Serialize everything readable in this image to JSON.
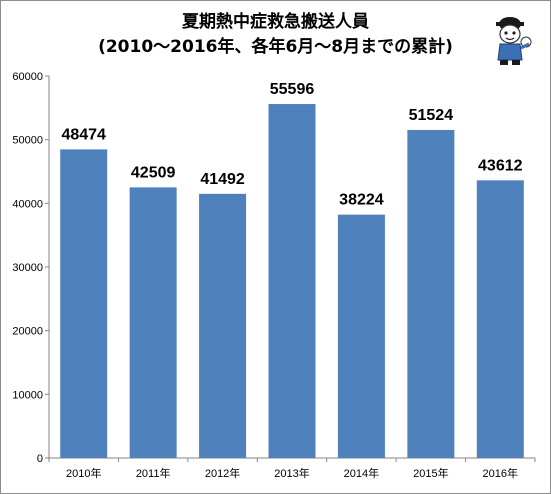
{
  "chart_data": {
    "type": "bar",
    "title": "夏期熱中症救急搬送人員",
    "subtitle": "(2010～2016年、各年6月～8月までの累計)",
    "categories": [
      "2010年",
      "2011年",
      "2012年",
      "2013年",
      "2014年",
      "2015年",
      "2016年"
    ],
    "values": [
      48474,
      42509,
      41492,
      55596,
      38224,
      51524,
      43612
    ],
    "data_labels": [
      "48474",
      "42509",
      "41492",
      "55596",
      "38224",
      "51524",
      "43612"
    ],
    "ylim": [
      0,
      60000
    ],
    "yticks": [
      0,
      10000,
      20000,
      30000,
      40000,
      50000,
      60000
    ],
    "ytick_labels": [
      "0",
      "10000",
      "20000",
      "30000",
      "40000",
      "50000",
      "60000"
    ],
    "xlabel": "",
    "ylabel": "",
    "grid": false,
    "legend": "none",
    "bar_color": "#4f81bd",
    "axis_color": "#868686"
  },
  "mascot_icon": "mascot-character-icon"
}
